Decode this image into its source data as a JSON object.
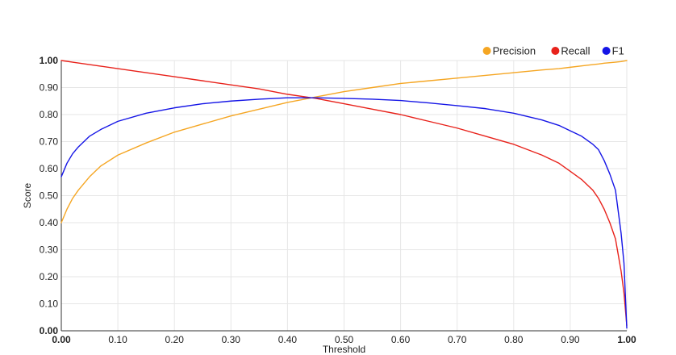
{
  "chart_data": {
    "type": "line",
    "xlabel": "Threshold",
    "ylabel": "Score",
    "xlim": [
      0,
      1
    ],
    "ylim": [
      0,
      1
    ],
    "grid": true,
    "legend_position": "top-right",
    "x_ticks": [
      "0.00",
      "0.10",
      "0.20",
      "0.30",
      "0.40",
      "0.50",
      "0.60",
      "0.70",
      "0.80",
      "0.90",
      "1.00"
    ],
    "y_ticks": [
      "0.00",
      "0.10",
      "0.20",
      "0.30",
      "0.40",
      "0.50",
      "0.60",
      "0.70",
      "0.80",
      "0.90",
      "1.00"
    ],
    "x": [
      0.0,
      0.01,
      0.02,
      0.03,
      0.05,
      0.07,
      0.1,
      0.15,
      0.2,
      0.25,
      0.3,
      0.35,
      0.4,
      0.45,
      0.5,
      0.55,
      0.6,
      0.65,
      0.7,
      0.75,
      0.8,
      0.85,
      0.88,
      0.9,
      0.92,
      0.94,
      0.95,
      0.96,
      0.97,
      0.98,
      0.99,
      0.995,
      1.0
    ],
    "series": [
      {
        "name": "Precision",
        "color": "#f5a623",
        "values": [
          0.4,
          0.45,
          0.49,
          0.52,
          0.57,
          0.61,
          0.65,
          0.695,
          0.735,
          0.765,
          0.795,
          0.82,
          0.845,
          0.865,
          0.885,
          0.9,
          0.915,
          0.925,
          0.935,
          0.945,
          0.955,
          0.965,
          0.97,
          0.975,
          0.98,
          0.985,
          0.987,
          0.99,
          0.992,
          0.994,
          0.996,
          0.998,
          1.0
        ]
      },
      {
        "name": "Recall",
        "color": "#e8221b",
        "values": [
          1.0,
          0.997,
          0.994,
          0.991,
          0.985,
          0.979,
          0.97,
          0.955,
          0.94,
          0.925,
          0.91,
          0.895,
          0.875,
          0.86,
          0.84,
          0.82,
          0.8,
          0.775,
          0.75,
          0.72,
          0.69,
          0.65,
          0.62,
          0.59,
          0.56,
          0.52,
          0.49,
          0.45,
          0.4,
          0.34,
          0.22,
          0.14,
          0.02
        ]
      },
      {
        "name": "F1",
        "color": "#1515e6",
        "values": [
          0.57,
          0.62,
          0.655,
          0.68,
          0.72,
          0.745,
          0.775,
          0.805,
          0.825,
          0.84,
          0.85,
          0.857,
          0.862,
          0.862,
          0.86,
          0.857,
          0.852,
          0.843,
          0.833,
          0.822,
          0.805,
          0.78,
          0.76,
          0.74,
          0.72,
          0.69,
          0.67,
          0.63,
          0.58,
          0.52,
          0.36,
          0.25,
          0.01
        ]
      }
    ]
  }
}
